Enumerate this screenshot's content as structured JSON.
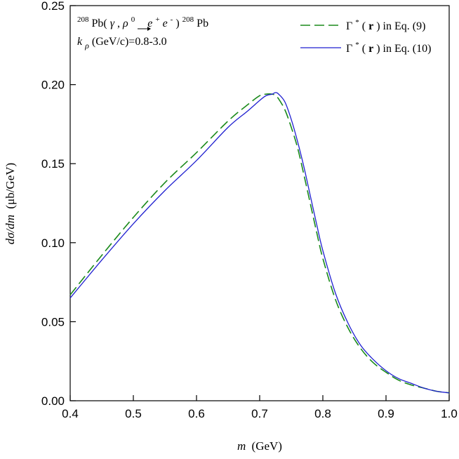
{
  "chart_data": {
    "type": "line",
    "title": "",
    "xlabel": "m (GeV)",
    "xlabel_var": "m",
    "xlabel_unit": "(GeV)",
    "ylabel": "dσ/dm (μb/GeV)",
    "ylabel_var": "dσ/dm",
    "ylabel_unit": "(μb/GeV)",
    "xlim": [
      0.4,
      1.0
    ],
    "ylim": [
      0.0,
      0.25
    ],
    "xticks": [
      0.4,
      0.5,
      0.6,
      0.7,
      0.8,
      0.9,
      1.0
    ],
    "xtick_labels": [
      "0.4",
      "0.5",
      "0.6",
      "0.7",
      "0.8",
      "0.9",
      "1.0"
    ],
    "yticks": [
      0.0,
      0.05,
      0.1,
      0.15,
      0.2,
      0.25
    ],
    "ytick_labels": [
      "0.00",
      "0.05",
      "0.10",
      "0.15",
      "0.20",
      "0.25"
    ],
    "grid": false,
    "legend_position": "top-right",
    "annotations": {
      "reaction": "208Pb(γ,ρ0→e+e-)208Pb",
      "reaction_parts": {
        "sup1": "208",
        "pb1": "Pb(",
        "gamma": "γ",
        "comma": ",",
        "rho": "ρ",
        "rho_sup": "0",
        "e1": "e",
        "e1_sup": "+",
        "e2": "e",
        "e2_sup": "-",
        "close": ")",
        "sup2": "208",
        "pb2": "Pb"
      },
      "krho": "kρ (GeV/c)=0.8-3.0",
      "krho_parts": {
        "k": "k",
        "sub": "ρ",
        "rest": " (GeV/c)=0.8-3.0"
      }
    },
    "series": [
      {
        "name": "Γ*(r) in Eq. (9)",
        "legend_gamma": "Γ",
        "legend_star": "*",
        "legend_open": "(",
        "legend_r": "r",
        "legend_rest": ") in Eq. (9)",
        "color": "#1a8a1a",
        "style": "dashed",
        "x": [
          0.4,
          0.45,
          0.5,
          0.55,
          0.6,
          0.65,
          0.68,
          0.7,
          0.71,
          0.72,
          0.725,
          0.73,
          0.74,
          0.75,
          0.76,
          0.77,
          0.78,
          0.79,
          0.8,
          0.82,
          0.84,
          0.86,
          0.88,
          0.9,
          0.92,
          0.94,
          0.96,
          0.98,
          1.0
        ],
        "y": [
          0.067,
          0.092,
          0.116,
          0.138,
          0.157,
          0.177,
          0.187,
          0.193,
          0.194,
          0.194,
          0.193,
          0.191,
          0.184,
          0.173,
          0.16,
          0.143,
          0.125,
          0.107,
          0.09,
          0.064,
          0.046,
          0.033,
          0.024,
          0.018,
          0.013,
          0.01,
          0.008,
          0.006,
          0.005
        ]
      },
      {
        "name": "Γ*(r) in Eq. (10)",
        "legend_gamma": "Γ",
        "legend_star": "*",
        "legend_open": "(",
        "legend_r": "r",
        "legend_rest": ") in Eq. (10)",
        "color": "#1f1fd0",
        "style": "solid",
        "x": [
          0.4,
          0.45,
          0.5,
          0.55,
          0.6,
          0.65,
          0.68,
          0.7,
          0.71,
          0.72,
          0.725,
          0.73,
          0.74,
          0.75,
          0.76,
          0.77,
          0.78,
          0.79,
          0.8,
          0.82,
          0.84,
          0.86,
          0.88,
          0.9,
          0.92,
          0.94,
          0.96,
          0.98,
          1.0
        ],
        "y": [
          0.065,
          0.089,
          0.112,
          0.133,
          0.152,
          0.173,
          0.183,
          0.19,
          0.193,
          0.194,
          0.195,
          0.194,
          0.189,
          0.178,
          0.164,
          0.148,
          0.13,
          0.112,
          0.095,
          0.068,
          0.049,
          0.035,
          0.026,
          0.019,
          0.014,
          0.011,
          0.008,
          0.006,
          0.005
        ]
      }
    ]
  }
}
